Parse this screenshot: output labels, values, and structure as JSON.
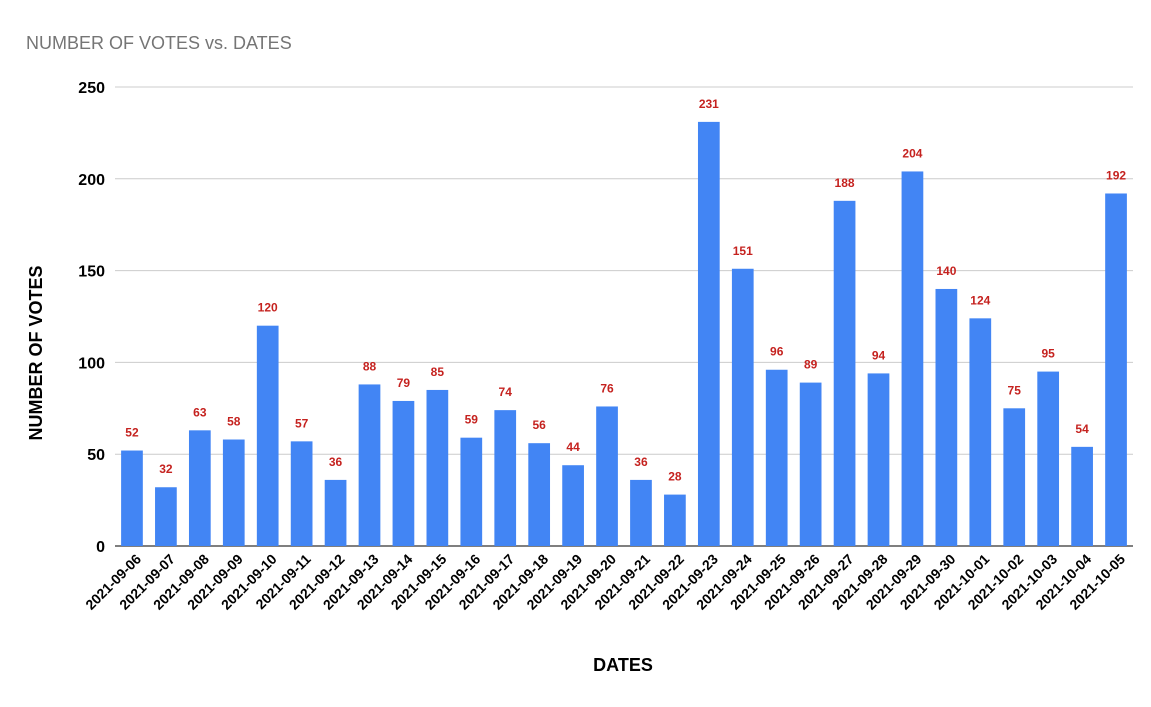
{
  "chart_data": {
    "type": "bar",
    "title": "NUMBER OF VOTES vs. DATES",
    "xlabel": "DATES",
    "ylabel": "NUMBER OF VOTES",
    "ylim": [
      0,
      250
    ],
    "yticks": [
      0,
      50,
      100,
      150,
      200,
      250
    ],
    "grid": true,
    "categories": [
      "2021-09-06",
      "2021-09-07",
      "2021-09-08",
      "2021-09-09",
      "2021-09-10",
      "2021-09-11",
      "2021-09-12",
      "2021-09-13",
      "2021-09-14",
      "2021-09-15",
      "2021-09-16",
      "2021-09-17",
      "2021-09-18",
      "2021-09-19",
      "2021-09-20",
      "2021-09-21",
      "2021-09-22",
      "2021-09-23",
      "2021-09-24",
      "2021-09-25",
      "2021-09-26",
      "2021-09-27",
      "2021-09-28",
      "2021-09-29",
      "2021-09-30",
      "2021-10-01",
      "2021-10-02",
      "2021-10-03",
      "2021-10-04",
      "2021-10-05"
    ],
    "values": [
      52,
      32,
      63,
      58,
      120,
      57,
      36,
      88,
      79,
      85,
      59,
      74,
      56,
      44,
      76,
      36,
      28,
      231,
      151,
      96,
      89,
      188,
      94,
      204,
      140,
      124,
      75,
      95,
      54,
      192
    ],
    "bar_color": "#4285f4",
    "label_color": "#c5221f",
    "grid_color": "#cccccc"
  }
}
